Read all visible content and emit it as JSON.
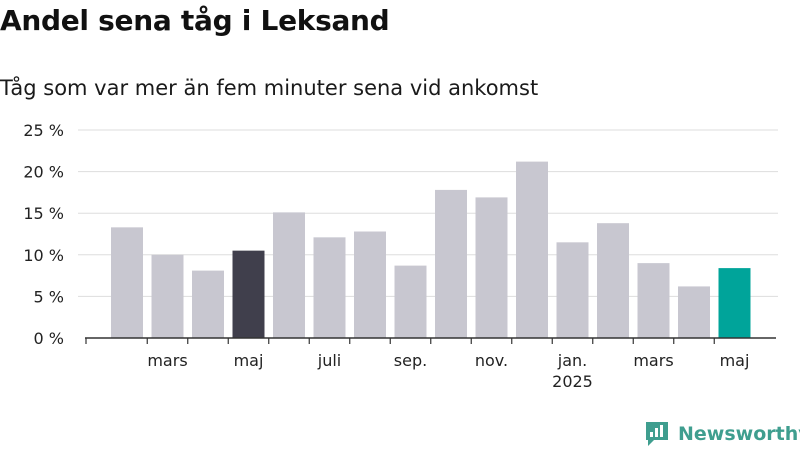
{
  "header": {
    "title": "Andel sena tåg i Leksand",
    "subtitle": "Tåg som var mer än fem minuter sena vid ankomst"
  },
  "brand": {
    "name": "Newsworthy",
    "color": "#3f9e8f"
  },
  "colors": {
    "default": "#c8c7d0",
    "highlight_prev": "#403f4c",
    "highlight_current": "#00a49a",
    "grid": "#dddddd",
    "axis": "#333333"
  },
  "chart_data": {
    "type": "bar",
    "title": "Andel sena tåg i Leksand",
    "subtitle": "Tåg som var mer än fem minuter sena vid ankomst",
    "categories": [
      "2024-02",
      "2024-03",
      "2024-04",
      "2024-05",
      "2024-06",
      "2024-07",
      "2024-08",
      "2024-09",
      "2024-10",
      "2024-11",
      "2024-12",
      "2025-01",
      "2025-02",
      "2025-03",
      "2025-04",
      "2025-05"
    ],
    "values": [
      13.3,
      10.0,
      8.1,
      10.5,
      15.1,
      12.1,
      12.8,
      8.7,
      17.8,
      16.9,
      21.2,
      11.5,
      13.8,
      9.0,
      6.2,
      8.4
    ],
    "highlight": {
      "2024-05": "highlight_prev",
      "2025-05": "highlight_current"
    },
    "ylim": [
      0,
      25
    ],
    "yticks": [
      0,
      5,
      10,
      15,
      20,
      25
    ],
    "ytick_labels": [
      "0 %",
      "5 %",
      "10 %",
      "15 %",
      "20 %",
      "25 %"
    ],
    "xticks": [
      {
        "at": "2024-03",
        "label": "mars"
      },
      {
        "at": "2024-05",
        "label": "maj"
      },
      {
        "at": "2024-07",
        "label": "juli"
      },
      {
        "at": "2024-09",
        "label": "sep."
      },
      {
        "at": "2024-11",
        "label": "nov."
      },
      {
        "at": "2025-01",
        "label": "jan.",
        "sublabel": "2025"
      },
      {
        "at": "2025-03",
        "label": "mars"
      },
      {
        "at": "2025-05",
        "label": "maj"
      }
    ],
    "xlabel": "",
    "ylabel": "",
    "grid": true,
    "legend": "none"
  }
}
